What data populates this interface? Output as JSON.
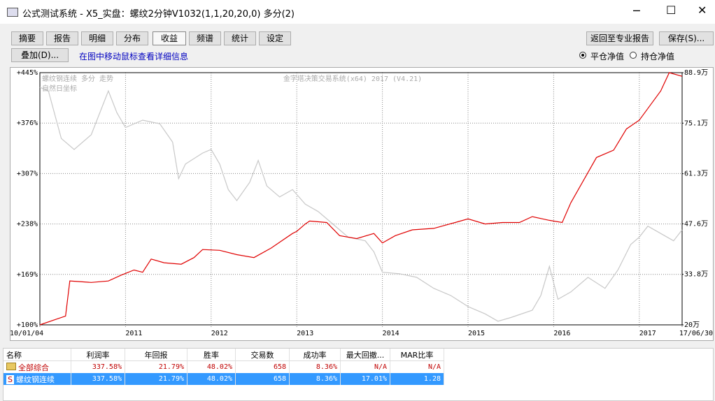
{
  "window": {
    "title": "公式测试系统 - X5_实盘：螺纹2分钟V1032(1,1,20,20,0) 多分(2)"
  },
  "toolbar": {
    "tabs": [
      "摘要",
      "报告",
      "明细",
      "分布",
      "收益",
      "频谱",
      "统计",
      "设定"
    ],
    "active_tab": 4,
    "right_buttons": [
      "返回至专业报告",
      "保存(S)..."
    ],
    "overlay_button": "叠加(D)...",
    "hint": "在图中移动鼠标查看详细信息",
    "radios": [
      "平仓净值",
      "持仓净值"
    ],
    "checked_radio": 0
  },
  "chart_data": {
    "type": "line",
    "annotations": [
      "螺纹钢连续 多分 走势",
      "自然日坐标",
      "金字塔决策交易系统(x64) 2017 (V4.21)"
    ],
    "xlim": [
      2010.0,
      2017.5
    ],
    "xticks": [
      {
        "value": 2010.0,
        "label": "10/01/04"
      },
      2011,
      2012,
      2013,
      2014,
      2015,
      2016,
      2017,
      {
        "value": 2017.5,
        "label": "17/06/30"
      }
    ],
    "ylim": [
      100,
      445
    ],
    "yticks": [
      {
        "value": 100,
        "label": "+100%"
      },
      {
        "value": 169,
        "label": "+169%"
      },
      {
        "value": 238,
        "label": "+238%"
      },
      {
        "value": 307,
        "label": "+307%"
      },
      {
        "value": 376,
        "label": "+376%"
      },
      {
        "value": 445,
        "label": "+445%"
      }
    ],
    "y2lim": [
      20,
      88.9
    ],
    "y2ticks": [
      {
        "value": 20,
        "label": "20万"
      },
      {
        "value": 33.8,
        "label": "33.8万"
      },
      {
        "value": 47.6,
        "label": "47.6万"
      },
      {
        "value": 61.3,
        "label": "61.3万"
      },
      {
        "value": 75.1,
        "label": "75.1万"
      },
      {
        "value": 88.9,
        "label": "88.9万"
      }
    ],
    "grid": true,
    "series": [
      {
        "color": "#c8c8c8",
        "x": [
          2010.0,
          2010.1,
          2010.25,
          2010.4,
          2010.6,
          2010.8,
          2010.9,
          2011.0,
          2011.2,
          2011.4,
          2011.55,
          2011.62,
          2011.7,
          2011.9,
          2012.0,
          2012.1,
          2012.2,
          2012.3,
          2012.45,
          2012.55,
          2012.65,
          2012.8,
          2012.95,
          2013.1,
          2013.25,
          2013.4,
          2013.6,
          2013.8,
          2013.9,
          2014.0,
          2014.2,
          2014.4,
          2014.6,
          2014.8,
          2015.0,
          2015.2,
          2015.35,
          2015.5,
          2015.75,
          2015.85,
          2015.95,
          2016.05,
          2016.2,
          2016.4,
          2016.6,
          2016.75,
          2016.9,
          2017.0,
          2017.1,
          2017.25,
          2017.4,
          2017.5
        ],
        "values": [
          425,
          420,
          355,
          340,
          360,
          420,
          390,
          370,
          380,
          375,
          350,
          300,
          320,
          335,
          340,
          320,
          285,
          270,
          295,
          325,
          290,
          275,
          285,
          265,
          255,
          240,
          220,
          215,
          200,
          172,
          170,
          165,
          150,
          140,
          125,
          115,
          105,
          110,
          120,
          140,
          180,
          135,
          145,
          165,
          150,
          175,
          210,
          220,
          235,
          225,
          215,
          230
        ]
      },
      {
        "color": "#e00000",
        "x": [
          2010.0,
          2010.2,
          2010.3,
          2010.35,
          2010.6,
          2010.8,
          2010.95,
          2011.1,
          2011.2,
          2011.3,
          2011.45,
          2011.65,
          2011.8,
          2011.9,
          2012.1,
          2012.3,
          2012.5,
          2012.7,
          2012.8,
          2012.95,
          2013.0,
          2013.1,
          2013.15,
          2013.35,
          2013.5,
          2013.7,
          2013.9,
          2014.0,
          2014.15,
          2014.35,
          2014.6,
          2014.85,
          2015.0,
          2015.2,
          2015.4,
          2015.6,
          2015.75,
          2015.95,
          2016.1,
          2016.2,
          2016.5,
          2016.7,
          2016.85,
          2017.0,
          2017.1,
          2017.25,
          2017.35,
          2017.5
        ],
        "values": [
          100,
          108,
          112,
          160,
          158,
          160,
          168,
          175,
          172,
          190,
          185,
          183,
          192,
          203,
          202,
          196,
          192,
          205,
          213,
          225,
          228,
          238,
          242,
          240,
          222,
          218,
          225,
          212,
          222,
          230,
          232,
          240,
          245,
          238,
          240,
          240,
          248,
          243,
          240,
          267,
          329,
          339,
          368,
          380,
          396,
          420,
          445,
          440
        ]
      }
    ]
  },
  "table": {
    "headers": [
      "名称",
      "利润率",
      "年回报",
      "胜率",
      "交易数",
      "成功率",
      "最大回撤...",
      "MAR比率"
    ],
    "rows": [
      [
        "全部综合",
        "337.58%",
        "21.79%",
        "48.02%",
        "658",
        "8.36%",
        "N/A",
        "N/A"
      ],
      [
        "螺纹钢连续",
        "337.58%",
        "21.79%",
        "48.02%",
        "658",
        "8.36%",
        "17.01%",
        "1.28"
      ]
    ],
    "row_marker": "S"
  }
}
